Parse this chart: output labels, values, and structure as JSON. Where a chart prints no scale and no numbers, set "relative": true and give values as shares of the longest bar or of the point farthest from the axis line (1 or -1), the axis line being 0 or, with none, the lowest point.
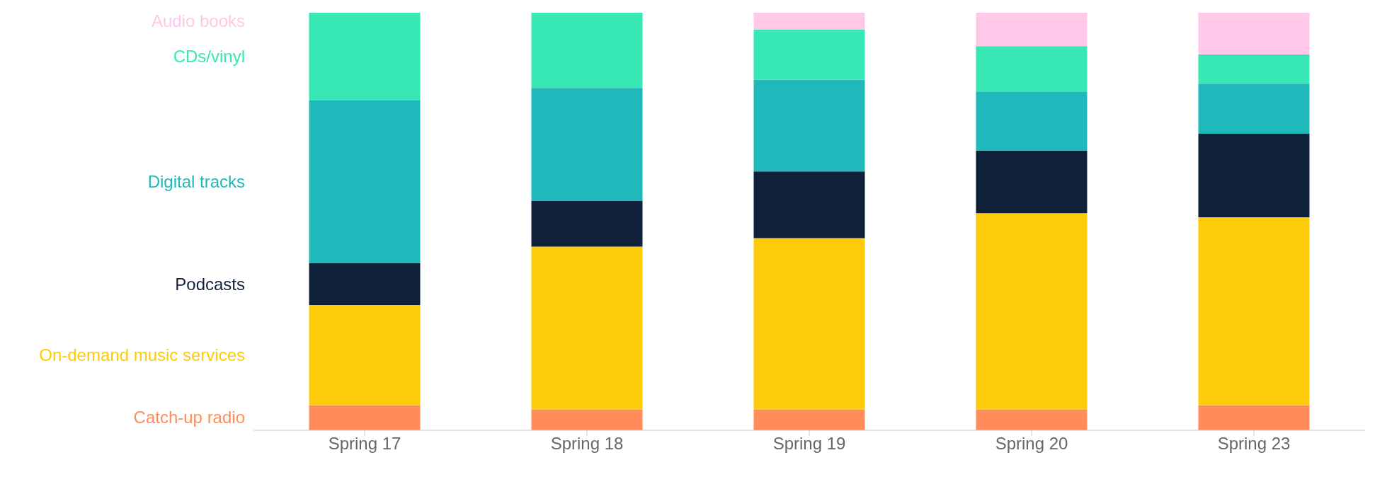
{
  "chart_data": {
    "type": "bar",
    "stacked": true,
    "relative": true,
    "legend": "left",
    "categories": [
      "Spring 17",
      "Spring 18",
      "Spring 19",
      "Spring 20",
      "Spring 23"
    ],
    "series": [
      {
        "name": "Catch-up radio",
        "color": "#ff8c5a",
        "values": [
          0.06,
          0.05,
          0.05,
          0.05,
          0.06
        ]
      },
      {
        "name": "On-demand music services",
        "color": "#fdcb0a",
        "values": [
          0.24,
          0.39,
          0.41,
          0.47,
          0.45
        ]
      },
      {
        "name": "Podcasts",
        "color": "#0f2039",
        "values": [
          0.1,
          0.11,
          0.16,
          0.15,
          0.2
        ]
      },
      {
        "name": "Digital tracks",
        "color": "#20b9bb",
        "values": [
          0.39,
          0.27,
          0.22,
          0.14,
          0.12
        ]
      },
      {
        "name": "CDs/vinyl",
        "color": "#38e8b4",
        "values": [
          0.21,
          0.18,
          0.12,
          0.11,
          0.07
        ]
      },
      {
        "name": "Audio books",
        "color": "#ffc8e8",
        "values": [
          0,
          0,
          0.04,
          0.08,
          0.1
        ]
      }
    ]
  }
}
